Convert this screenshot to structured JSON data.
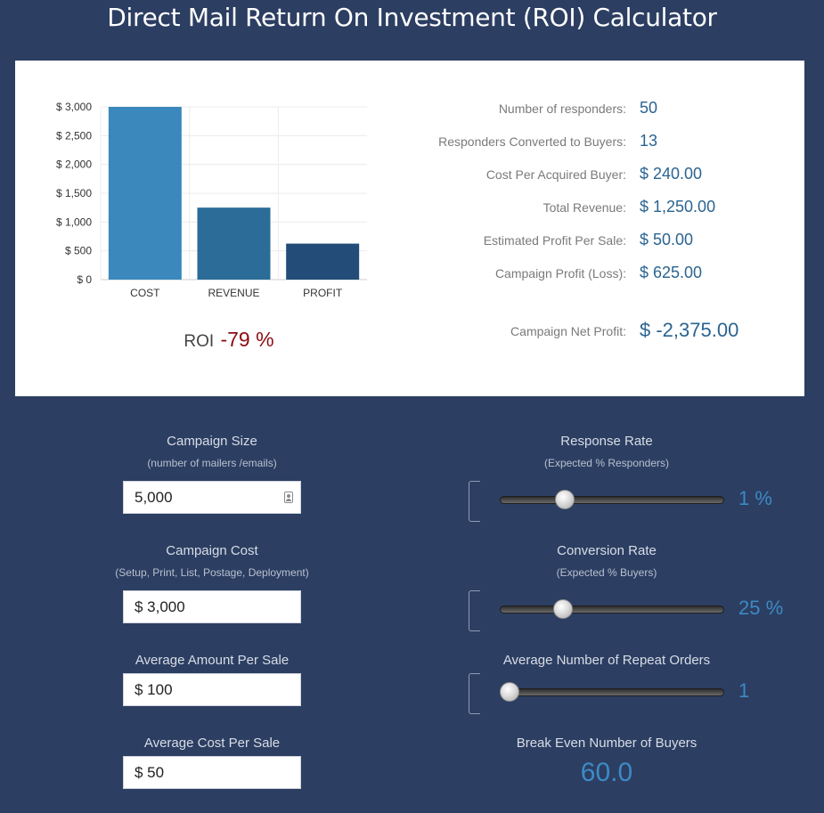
{
  "title": "Direct Mail Return On Investment (ROI) Calculator",
  "chart_data": {
    "type": "bar",
    "categories": [
      "COST",
      "REVENUE",
      "PROFIT"
    ],
    "values": [
      3000,
      1250,
      625
    ],
    "colors": [
      "#3a88bc",
      "#2b6c98",
      "#234d78"
    ],
    "yticks": [
      "$ 0",
      "$ 500",
      "$ 1,000",
      "$ 1,500",
      "$ 2,000",
      "$ 2,500",
      "$ 3,000"
    ],
    "ylim": [
      0,
      3000
    ],
    "grid": true
  },
  "roi": {
    "label": "ROI",
    "value": "-79 %"
  },
  "stats": [
    {
      "label": "Number of responders:",
      "value": "50"
    },
    {
      "label": "Responders Converted to Buyers:",
      "value": "13"
    },
    {
      "label": "Cost Per Acquired Buyer:",
      "value": "$ 240.00"
    },
    {
      "label": "Total Revenue:",
      "value": "$ 1,250.00"
    },
    {
      "label": "Estimated Profit Per Sale:",
      "value": "$ 50.00"
    },
    {
      "label": "Campaign Profit (Loss):",
      "value": "$ 625.00"
    },
    {
      "label": "Campaign Net Profit:",
      "value": "$ -2,375.00"
    }
  ],
  "inputs": {
    "campaign_size": {
      "title": "Campaign Size",
      "subtitle": "(number of mailers /emails)",
      "value": "5,000"
    },
    "campaign_cost": {
      "title": "Campaign Cost",
      "subtitle": "(Setup, Print, List, Postage, Deployment)",
      "value": "$ 3,000"
    },
    "avg_amount": {
      "title": "Average Amount Per Sale",
      "value": "$ 100"
    },
    "avg_cost": {
      "title": "Average Cost Per Sale",
      "value": "$ 50"
    }
  },
  "sliders": {
    "response_rate": {
      "title": "Response Rate",
      "subtitle": "(Expected % Responders)",
      "value": "1 %",
      "level": 0.27
    },
    "conversion_rate": {
      "title": "Conversion Rate",
      "subtitle": "(Expected % Buyers)",
      "value": "25 %",
      "level": 0.26
    },
    "repeat_orders": {
      "title": "Average Number of Repeat Orders",
      "value": "1",
      "level": 0.0
    }
  },
  "breakeven": {
    "title": "Break Even Number of Buyers",
    "value": "60.0"
  }
}
